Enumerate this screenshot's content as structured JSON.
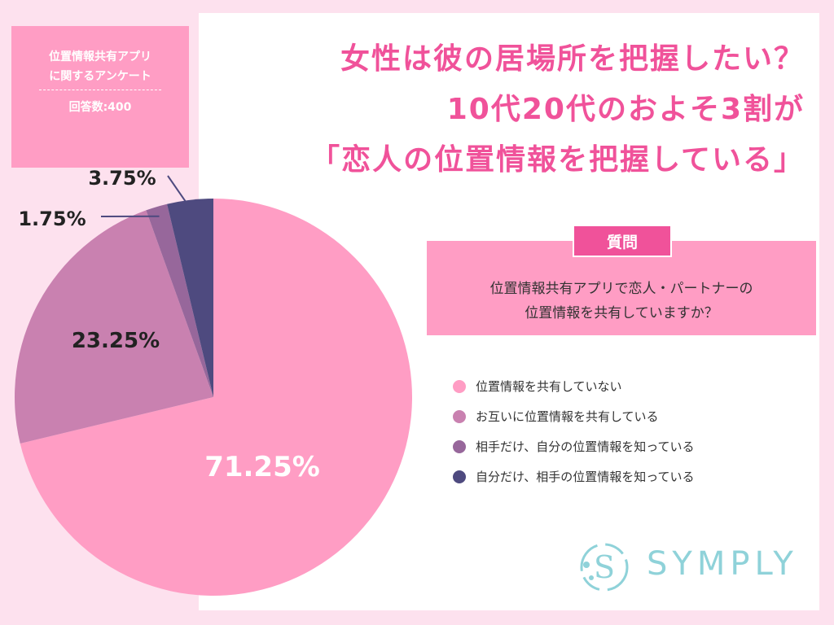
{
  "survey": {
    "title": "位置情報共有アプリ\nに関するアンケート",
    "count": "回答数:400"
  },
  "headline": {
    "line1": "女性は彼の居場所を把握したい？",
    "line2": "10代20代のおよそ3割が",
    "line3": "「恋人の位置情報を把握している」"
  },
  "question": {
    "label": "質問",
    "text": "位置情報共有アプリで恋人・パートナーの\n位置情報を共有していますか？"
  },
  "brand": {
    "name": "SYMPLY",
    "color": "#8fd2d9"
  },
  "colors": {
    "accent": "#f0529a",
    "box": "#ff9dc4",
    "background": "#fde1ee"
  },
  "chart_data": {
    "type": "pie",
    "title": "",
    "slices": [
      {
        "label": "位置情報を共有していない",
        "value": 71.25,
        "display": "71.25%",
        "color": "#ff9dc4"
      },
      {
        "label": "お互いに位置情報を共有している",
        "value": 23.25,
        "display": "23.25%",
        "color": "#c981b0"
      },
      {
        "label": "相手だけ、自分の位置情報を知っている",
        "value": 1.75,
        "display": "1.75%",
        "color": "#97679b"
      },
      {
        "label": "自分だけ、相手の位置情報を知っている",
        "value": 3.75,
        "display": "3.75%",
        "color": "#4e4a7f"
      }
    ],
    "legend_position": "right",
    "start_angle": "12 o'clock, clockwise"
  }
}
